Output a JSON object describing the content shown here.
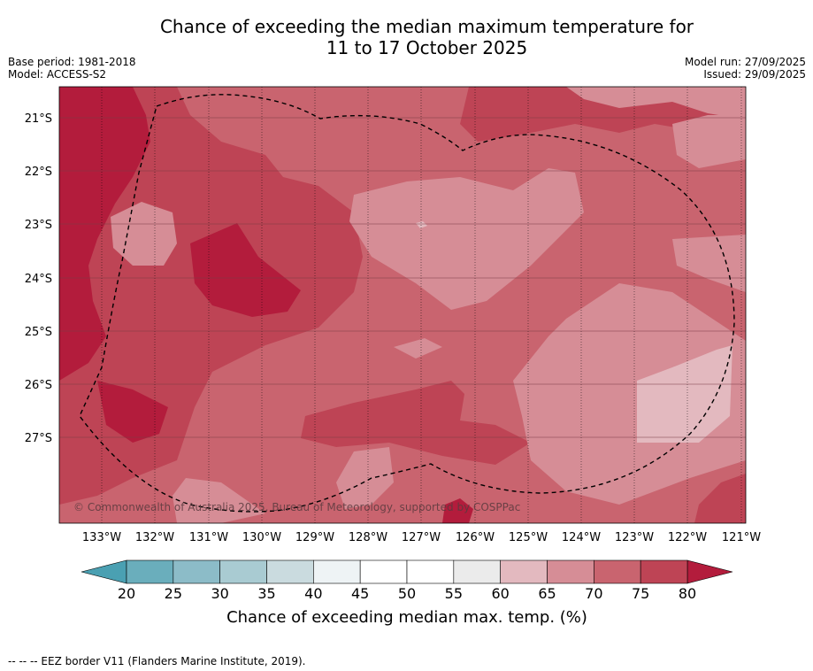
{
  "title_line1": "Chance of exceeding the median maximum temperature for",
  "title_line2": "11 to 17 October 2025",
  "base_period": "Base period: 1981-2018",
  "model": "Model: ACCESS-S2",
  "model_run": "Model run: 27/09/2025",
  "issued": "Issued: 29/09/2025",
  "copyright": "© Commonwealth of Australia 2025, Bureau of Meteorology, supported by COSPPac",
  "lat_labels": [
    "21°S",
    "22°S",
    "23°S",
    "24°S",
    "25°S",
    "26°S",
    "27°S"
  ],
  "lon_labels": [
    "133°W",
    "132°W",
    "131°W",
    "130°W",
    "129°W",
    "128°W",
    "127°W",
    "126°W",
    "125°W",
    "124°W",
    "123°W",
    "122°W",
    "121°W"
  ],
  "colorbar": {
    "ticks": [
      "20",
      "25",
      "30",
      "35",
      "40",
      "45",
      "50",
      "55",
      "60",
      "65",
      "70",
      "75",
      "80"
    ],
    "label": "Chance of exceeding median max. temp. (%)",
    "colors": [
      "#6aaebc",
      "#8cbcc8",
      "#a9cbd2",
      "#cadbdf",
      "#eef3f5",
      "#ffffff",
      "#ffffff",
      "#ebebeb",
      "#e3b9bf",
      "#d68d96",
      "#c9646f",
      "#be4455"
    ],
    "under_color": "#4aa0b2",
    "over_color": "#b31c3c"
  },
  "legend_note": "--  --  -- EEZ border V11 (Flanders Marine Institute, 2019)."
}
